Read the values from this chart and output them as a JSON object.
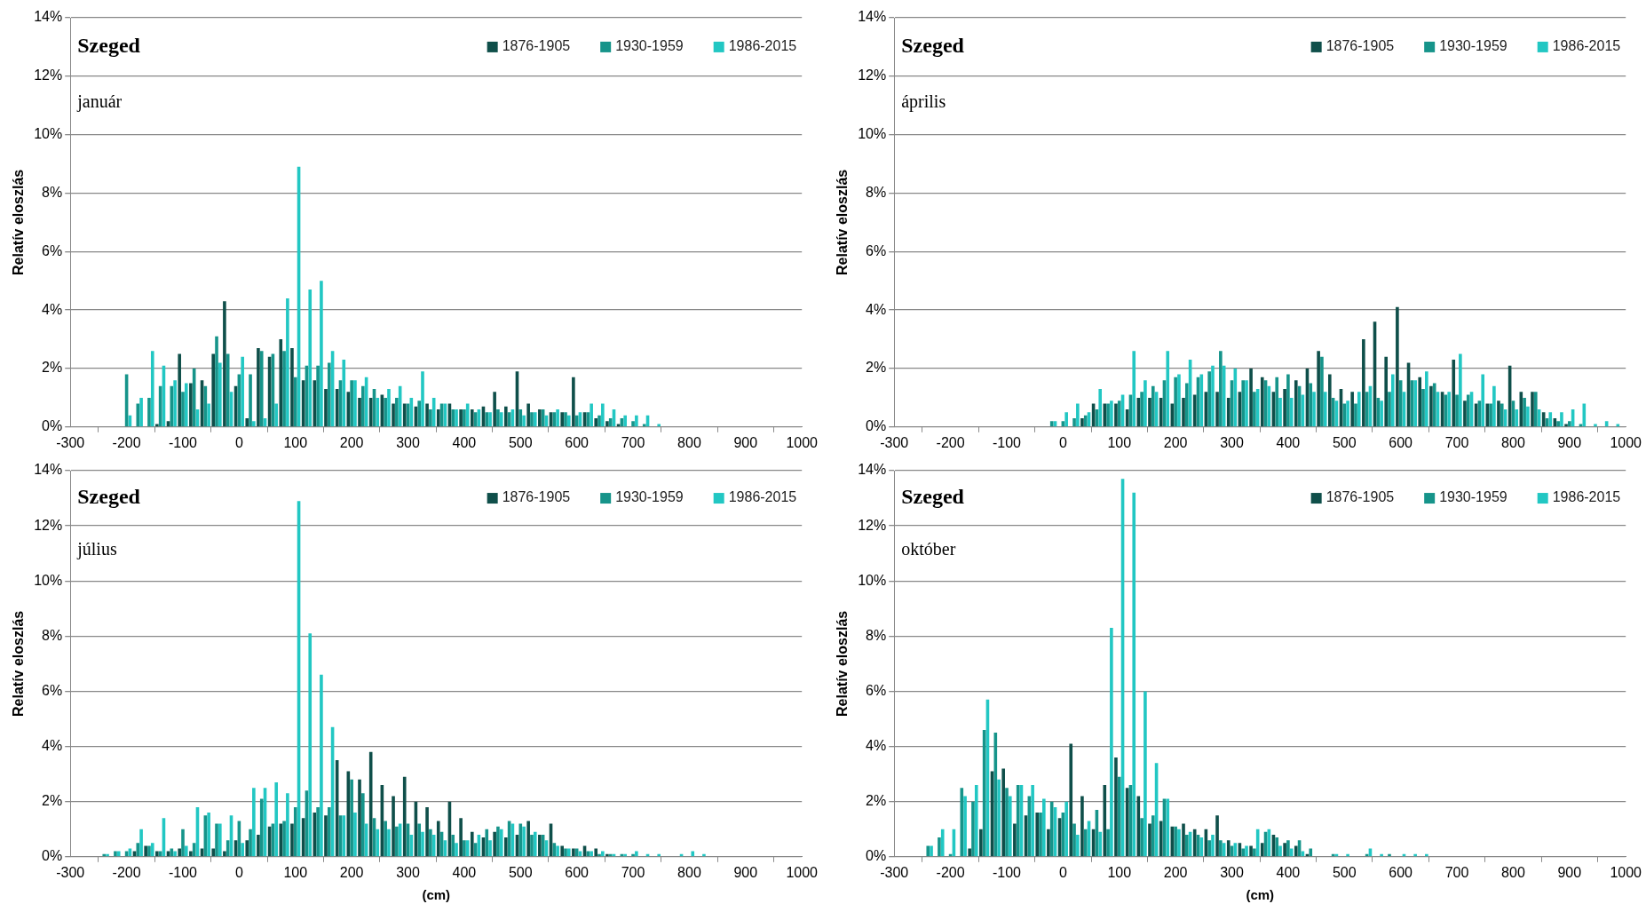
{
  "chart_data": [
    {
      "type": "bar",
      "title": "Szeged",
      "subtitle": "január",
      "ylabel": "Relatív eloszlás",
      "legend": "top right",
      "grid": "y",
      "xlim": [
        -300,
        1000
      ],
      "xticks": [
        -300,
        -200,
        -100,
        0,
        100,
        200,
        300,
        400,
        500,
        600,
        700,
        800,
        900,
        1000
      ],
      "ylim": [
        0,
        14
      ],
      "yticks": [
        {
          "value": 0,
          "label": "0%"
        },
        {
          "value": 2,
          "label": "2%"
        },
        {
          "value": 4,
          "label": "4%"
        },
        {
          "value": 6,
          "label": "6%"
        },
        {
          "value": 8,
          "label": "8%"
        },
        {
          "value": 10,
          "label": "10%"
        },
        {
          "value": 12,
          "label": "12%"
        },
        {
          "value": 14,
          "label": "14%"
        }
      ],
      "x": [
        -200,
        -180,
        -160,
        -140,
        -120,
        -100,
        -80,
        -60,
        -40,
        -20,
        0,
        20,
        40,
        60,
        80,
        100,
        120,
        140,
        160,
        180,
        200,
        220,
        240,
        260,
        280,
        300,
        320,
        340,
        360,
        380,
        400,
        420,
        440,
        460,
        480,
        500,
        520,
        540,
        560,
        580,
        600,
        620,
        640,
        660,
        680,
        700,
        720,
        740
      ],
      "series": [
        {
          "name": "1876-1905",
          "color": "#0f4f4a",
          "values": [
            0,
            0,
            0,
            0.1,
            0.2,
            2.5,
            1.5,
            1.6,
            2.5,
            4.3,
            1.4,
            0.3,
            2.7,
            2.4,
            3.0,
            2.7,
            1.6,
            1.6,
            1.3,
            1.3,
            1.2,
            1.0,
            1.0,
            1.1,
            0.8,
            0.8,
            0.7,
            0.8,
            0.6,
            0.8,
            0.6,
            0.6,
            0.7,
            1.2,
            0.7,
            1.9,
            0.8,
            0.6,
            0.5,
            0.5,
            1.7,
            0.5,
            0.3,
            0.2,
            0.1,
            0,
            0,
            0
          ]
        },
        {
          "name": "1930-1959",
          "color": "#16948a",
          "values": [
            1.8,
            0.8,
            1.0,
            1.4,
            1.4,
            1.2,
            2.0,
            1.4,
            3.1,
            2.5,
            1.8,
            1.8,
            2.6,
            2.5,
            2.6,
            1.7,
            2.1,
            2.1,
            2.2,
            1.6,
            1.6,
            1.4,
            1.3,
            1.0,
            1.0,
            0.8,
            0.9,
            0.6,
            0.8,
            0.6,
            0.6,
            0.5,
            0.5,
            0.6,
            0.5,
            0.6,
            0.5,
            0.6,
            0.5,
            0.5,
            0.4,
            0.5,
            0.4,
            0.3,
            0.3,
            0.2,
            0.1,
            0
          ]
        },
        {
          "name": "1986-2015",
          "color": "#22c7c3",
          "values": [
            0.4,
            1.0,
            2.6,
            2.1,
            1.6,
            1.5,
            0.6,
            0.8,
            2.2,
            1.2,
            2.4,
            0.2,
            0.3,
            0.8,
            4.4,
            8.9,
            4.7,
            5.0,
            2.6,
            2.3,
            1.6,
            1.7,
            1.0,
            1.3,
            1.4,
            1.0,
            1.9,
            1.0,
            0.8,
            0.6,
            0.8,
            0.6,
            0.5,
            0.5,
            0.6,
            0.4,
            0.5,
            0.4,
            0.6,
            0.4,
            0.5,
            0.8,
            0.8,
            0.6,
            0.4,
            0.4,
            0.4,
            0.1
          ]
        }
      ]
    },
    {
      "type": "bar",
      "title": "Szeged",
      "subtitle": "április",
      "ylabel": "Relatív eloszlás",
      "legend": "top right",
      "grid": "y",
      "xlim": [
        -300,
        1000
      ],
      "xticks": [
        -300,
        -200,
        -100,
        0,
        100,
        200,
        300,
        400,
        500,
        600,
        700,
        800,
        900,
        1000
      ],
      "ylim": [
        0,
        14
      ],
      "yticks": [
        {
          "value": 0,
          "label": "0%"
        },
        {
          "value": 2,
          "label": "2%"
        },
        {
          "value": 4,
          "label": "4%"
        },
        {
          "value": 6,
          "label": "6%"
        },
        {
          "value": 8,
          "label": "8%"
        },
        {
          "value": 10,
          "label": "10%"
        },
        {
          "value": 12,
          "label": "12%"
        },
        {
          "value": 14,
          "label": "14%"
        }
      ],
      "x": [
        -20,
        0,
        20,
        40,
        60,
        80,
        100,
        120,
        140,
        160,
        180,
        200,
        220,
        240,
        260,
        280,
        300,
        320,
        340,
        360,
        380,
        400,
        420,
        440,
        460,
        480,
        500,
        520,
        540,
        560,
        580,
        600,
        620,
        640,
        660,
        680,
        700,
        720,
        740,
        760,
        780,
        800,
        820,
        840,
        860,
        880,
        900,
        920,
        940,
        960,
        980
      ],
      "series": [
        {
          "name": "1876-1905",
          "color": "#0f4f4a",
          "values": [
            0,
            0,
            0,
            0.3,
            0.8,
            0.8,
            0.8,
            0.6,
            1.0,
            1.0,
            1.0,
            0.8,
            1.0,
            1.1,
            1.2,
            1.2,
            1.0,
            1.2,
            2.0,
            1.7,
            1.2,
            1.3,
            1.6,
            2.0,
            2.6,
            1.8,
            1.3,
            1.2,
            3.0,
            3.6,
            2.4,
            4.1,
            2.2,
            1.7,
            1.4,
            1.2,
            2.3,
            0.9,
            0.8,
            0.8,
            0.9,
            2.1,
            1.2,
            1.2,
            0.5,
            0.3,
            0.1,
            0,
            0,
            0,
            0
          ]
        },
        {
          "name": "1930-1959",
          "color": "#16948a",
          "values": [
            0.2,
            0.2,
            0.3,
            0.4,
            0.6,
            0.8,
            0.9,
            1.1,
            1.2,
            1.4,
            1.6,
            1.7,
            1.5,
            1.7,
            1.9,
            2.6,
            1.6,
            1.6,
            1.2,
            1.6,
            1.7,
            1.8,
            1.4,
            1.5,
            2.4,
            1.0,
            0.8,
            0.8,
            1.2,
            1.0,
            1.2,
            1.6,
            1.6,
            1.3,
            1.5,
            1.1,
            1.1,
            1.1,
            0.9,
            0.8,
            0.8,
            0.9,
            1.0,
            1.2,
            0.3,
            0.2,
            0.2,
            0.1,
            0,
            0,
            0
          ]
        },
        {
          "name": "1986-2015",
          "color": "#22c7c3",
          "values": [
            0.2,
            0.5,
            0.8,
            0.5,
            1.3,
            0.9,
            1.1,
            2.6,
            1.6,
            1.2,
            2.6,
            1.8,
            2.3,
            1.8,
            2.1,
            2.1,
            2.0,
            1.6,
            1.3,
            1.4,
            1.0,
            1.0,
            1.1,
            1.2,
            1.2,
            0.9,
            0.9,
            1.2,
            1.4,
            0.9,
            1.8,
            1.2,
            1.6,
            1.9,
            1.2,
            1.2,
            2.5,
            1.2,
            1.8,
            1.4,
            0.6,
            0.6,
            0.7,
            0.6,
            0.5,
            0.5,
            0.6,
            0.8,
            0.1,
            0.2,
            0.1
          ]
        }
      ]
    },
    {
      "type": "bar",
      "title": "Szeged",
      "subtitle": "július",
      "ylabel": "Relatív eloszlás",
      "xlabel": "(cm)",
      "legend": "top right",
      "grid": "y",
      "xlim": [
        -300,
        1000
      ],
      "xticks": [
        -300,
        -200,
        -100,
        0,
        100,
        200,
        300,
        400,
        500,
        600,
        700,
        800,
        900,
        1000
      ],
      "ylim": [
        0,
        14
      ],
      "yticks": [
        {
          "value": 0,
          "label": "0%"
        },
        {
          "value": 2,
          "label": "2%"
        },
        {
          "value": 4,
          "label": "4%"
        },
        {
          "value": 6,
          "label": "6%"
        },
        {
          "value": 8,
          "label": "8%"
        },
        {
          "value": 10,
          "label": "10%"
        },
        {
          "value": 12,
          "label": "12%"
        },
        {
          "value": 14,
          "label": "14%"
        }
      ],
      "x": [
        -240,
        -220,
        -200,
        -180,
        -160,
        -140,
        -120,
        -100,
        -80,
        -60,
        -40,
        -20,
        0,
        20,
        40,
        60,
        80,
        100,
        120,
        140,
        160,
        180,
        200,
        220,
        240,
        260,
        280,
        300,
        320,
        340,
        360,
        380,
        400,
        420,
        440,
        460,
        480,
        500,
        520,
        540,
        560,
        580,
        600,
        620,
        640,
        660,
        680,
        700,
        720,
        740,
        760,
        780,
        800,
        820
      ],
      "series": [
        {
          "name": "1876-1905",
          "color": "#0f4f4a",
          "values": [
            0,
            0,
            0,
            0.2,
            0.4,
            0.2,
            0.2,
            0.3,
            0.2,
            0.3,
            0.3,
            0.2,
            0.6,
            0.6,
            0.8,
            1.1,
            1.2,
            1.2,
            1.4,
            1.6,
            1.5,
            3.5,
            3.1,
            2.8,
            3.8,
            2.6,
            2.2,
            2.9,
            2.0,
            1.8,
            1.3,
            2.0,
            1.4,
            0.9,
            0.7,
            0.9,
            0.7,
            0.8,
            1.3,
            0.8,
            1.2,
            0.4,
            0.3,
            0.4,
            0.3,
            0.1,
            0,
            0,
            0,
            0,
            0,
            0,
            0,
            0
          ]
        },
        {
          "name": "1930-1959",
          "color": "#16948a",
          "values": [
            0.1,
            0.2,
            0.2,
            0.5,
            0.4,
            0.2,
            0.3,
            1.0,
            0.5,
            1.5,
            1.2,
            0.6,
            1.3,
            1.0,
            2.1,
            1.2,
            1.3,
            1.8,
            2.4,
            1.8,
            1.8,
            1.5,
            2.8,
            2.3,
            1.4,
            1.3,
            1.1,
            1.2,
            1.2,
            1.0,
            0.9,
            0.8,
            0.6,
            0.5,
            1.0,
            1.1,
            1.3,
            1.2,
            0.8,
            0.8,
            0.5,
            0.3,
            0.3,
            0.2,
            0.1,
            0.1,
            0.1,
            0.1,
            0,
            0,
            0,
            0,
            0,
            0
          ]
        },
        {
          "name": "1986-2015",
          "color": "#22c7c3",
          "values": [
            0.1,
            0.2,
            0.3,
            1.0,
            0.5,
            1.4,
            0.2,
            0.4,
            1.8,
            1.6,
            1.2,
            1.5,
            0.5,
            2.5,
            2.5,
            2.7,
            2.3,
            12.9,
            8.1,
            6.6,
            4.7,
            1.5,
            1.6,
            1.2,
            1.0,
            1.0,
            1.2,
            0.8,
            0.9,
            0.8,
            0.6,
            0.5,
            0.6,
            0.8,
            0.6,
            1.0,
            1.2,
            1.1,
            0.9,
            0.6,
            0.4,
            0.3,
            0.2,
            0.2,
            0.2,
            0.1,
            0.1,
            0.2,
            0.1,
            0.1,
            0,
            0.1,
            0.2,
            0.1
          ]
        }
      ]
    },
    {
      "type": "bar",
      "title": "Szeged",
      "subtitle": "október",
      "ylabel": "Relatív eloszlás",
      "xlabel": "(cm)",
      "legend": "top right",
      "grid": "y",
      "xlim": [
        -300,
        1000
      ],
      "xticks": [
        -300,
        -200,
        -100,
        0,
        100,
        200,
        300,
        400,
        500,
        600,
        700,
        800,
        900,
        1000
      ],
      "ylim": [
        0,
        14
      ],
      "yticks": [
        {
          "value": 0,
          "label": "0%"
        },
        {
          "value": 2,
          "label": "2%"
        },
        {
          "value": 4,
          "label": "4%"
        },
        {
          "value": 6,
          "label": "6%"
        },
        {
          "value": 8,
          "label": "8%"
        },
        {
          "value": 10,
          "label": "10%"
        },
        {
          "value": 12,
          "label": "12%"
        },
        {
          "value": 14,
          "label": "14%"
        }
      ],
      "x": [
        -240,
        -220,
        -200,
        -180,
        -160,
        -140,
        -120,
        -100,
        -80,
        -60,
        -40,
        -20,
        0,
        20,
        40,
        60,
        80,
        100,
        120,
        140,
        160,
        180,
        200,
        220,
        240,
        260,
        280,
        300,
        320,
        340,
        360,
        380,
        400,
        420,
        440,
        460,
        480,
        500,
        520,
        540,
        560,
        580,
        600,
        620,
        640
      ],
      "series": [
        {
          "name": "1876-1905",
          "color": "#0f4f4a",
          "values": [
            0,
            0,
            0,
            0,
            0.3,
            1.0,
            3.1,
            3.2,
            1.2,
            1.5,
            1.6,
            1.0,
            1.4,
            4.1,
            2.2,
            1.0,
            2.6,
            3.6,
            2.5,
            2.2,
            1.2,
            1.3,
            1.1,
            1.2,
            1.0,
            1.0,
            1.5,
            0.6,
            0.5,
            0.4,
            0.5,
            0.8,
            0.5,
            0.4,
            0.1,
            0,
            0,
            0,
            0,
            0,
            0,
            0,
            0,
            0,
            0
          ]
        },
        {
          "name": "1930-1959",
          "color": "#16948a",
          "values": [
            0.4,
            0.7,
            0.1,
            2.5,
            2.0,
            4.6,
            4.5,
            2.5,
            2.6,
            2.2,
            1.6,
            2.0,
            1.6,
            1.2,
            1.0,
            1.7,
            1.0,
            2.9,
            2.6,
            1.4,
            1.5,
            2.1,
            1.1,
            0.8,
            0.8,
            0.6,
            0.6,
            0.4,
            0.3,
            0.3,
            0.9,
            0.7,
            0.6,
            0.6,
            0.3,
            0,
            0.1,
            0,
            0,
            0.1,
            0,
            0.1,
            0,
            0,
            0
          ]
        },
        {
          "name": "1986-2015",
          "color": "#22c7c3",
          "values": [
            0.4,
            1.0,
            1.0,
            2.2,
            2.6,
            5.7,
            2.8,
            2.2,
            2.6,
            2.6,
            2.1,
            1.8,
            2.0,
            0.8,
            1.3,
            0.9,
            8.3,
            13.7,
            13.2,
            6.0,
            3.4,
            2.1,
            1.0,
            0.9,
            0.7,
            0.8,
            0.5,
            0.5,
            0.4,
            1.0,
            1.0,
            0.4,
            0.3,
            0.2,
            0,
            0,
            0.1,
            0.1,
            0,
            0.3,
            0.1,
            0,
            0.1,
            0.1,
            0.1
          ]
        }
      ]
    }
  ]
}
